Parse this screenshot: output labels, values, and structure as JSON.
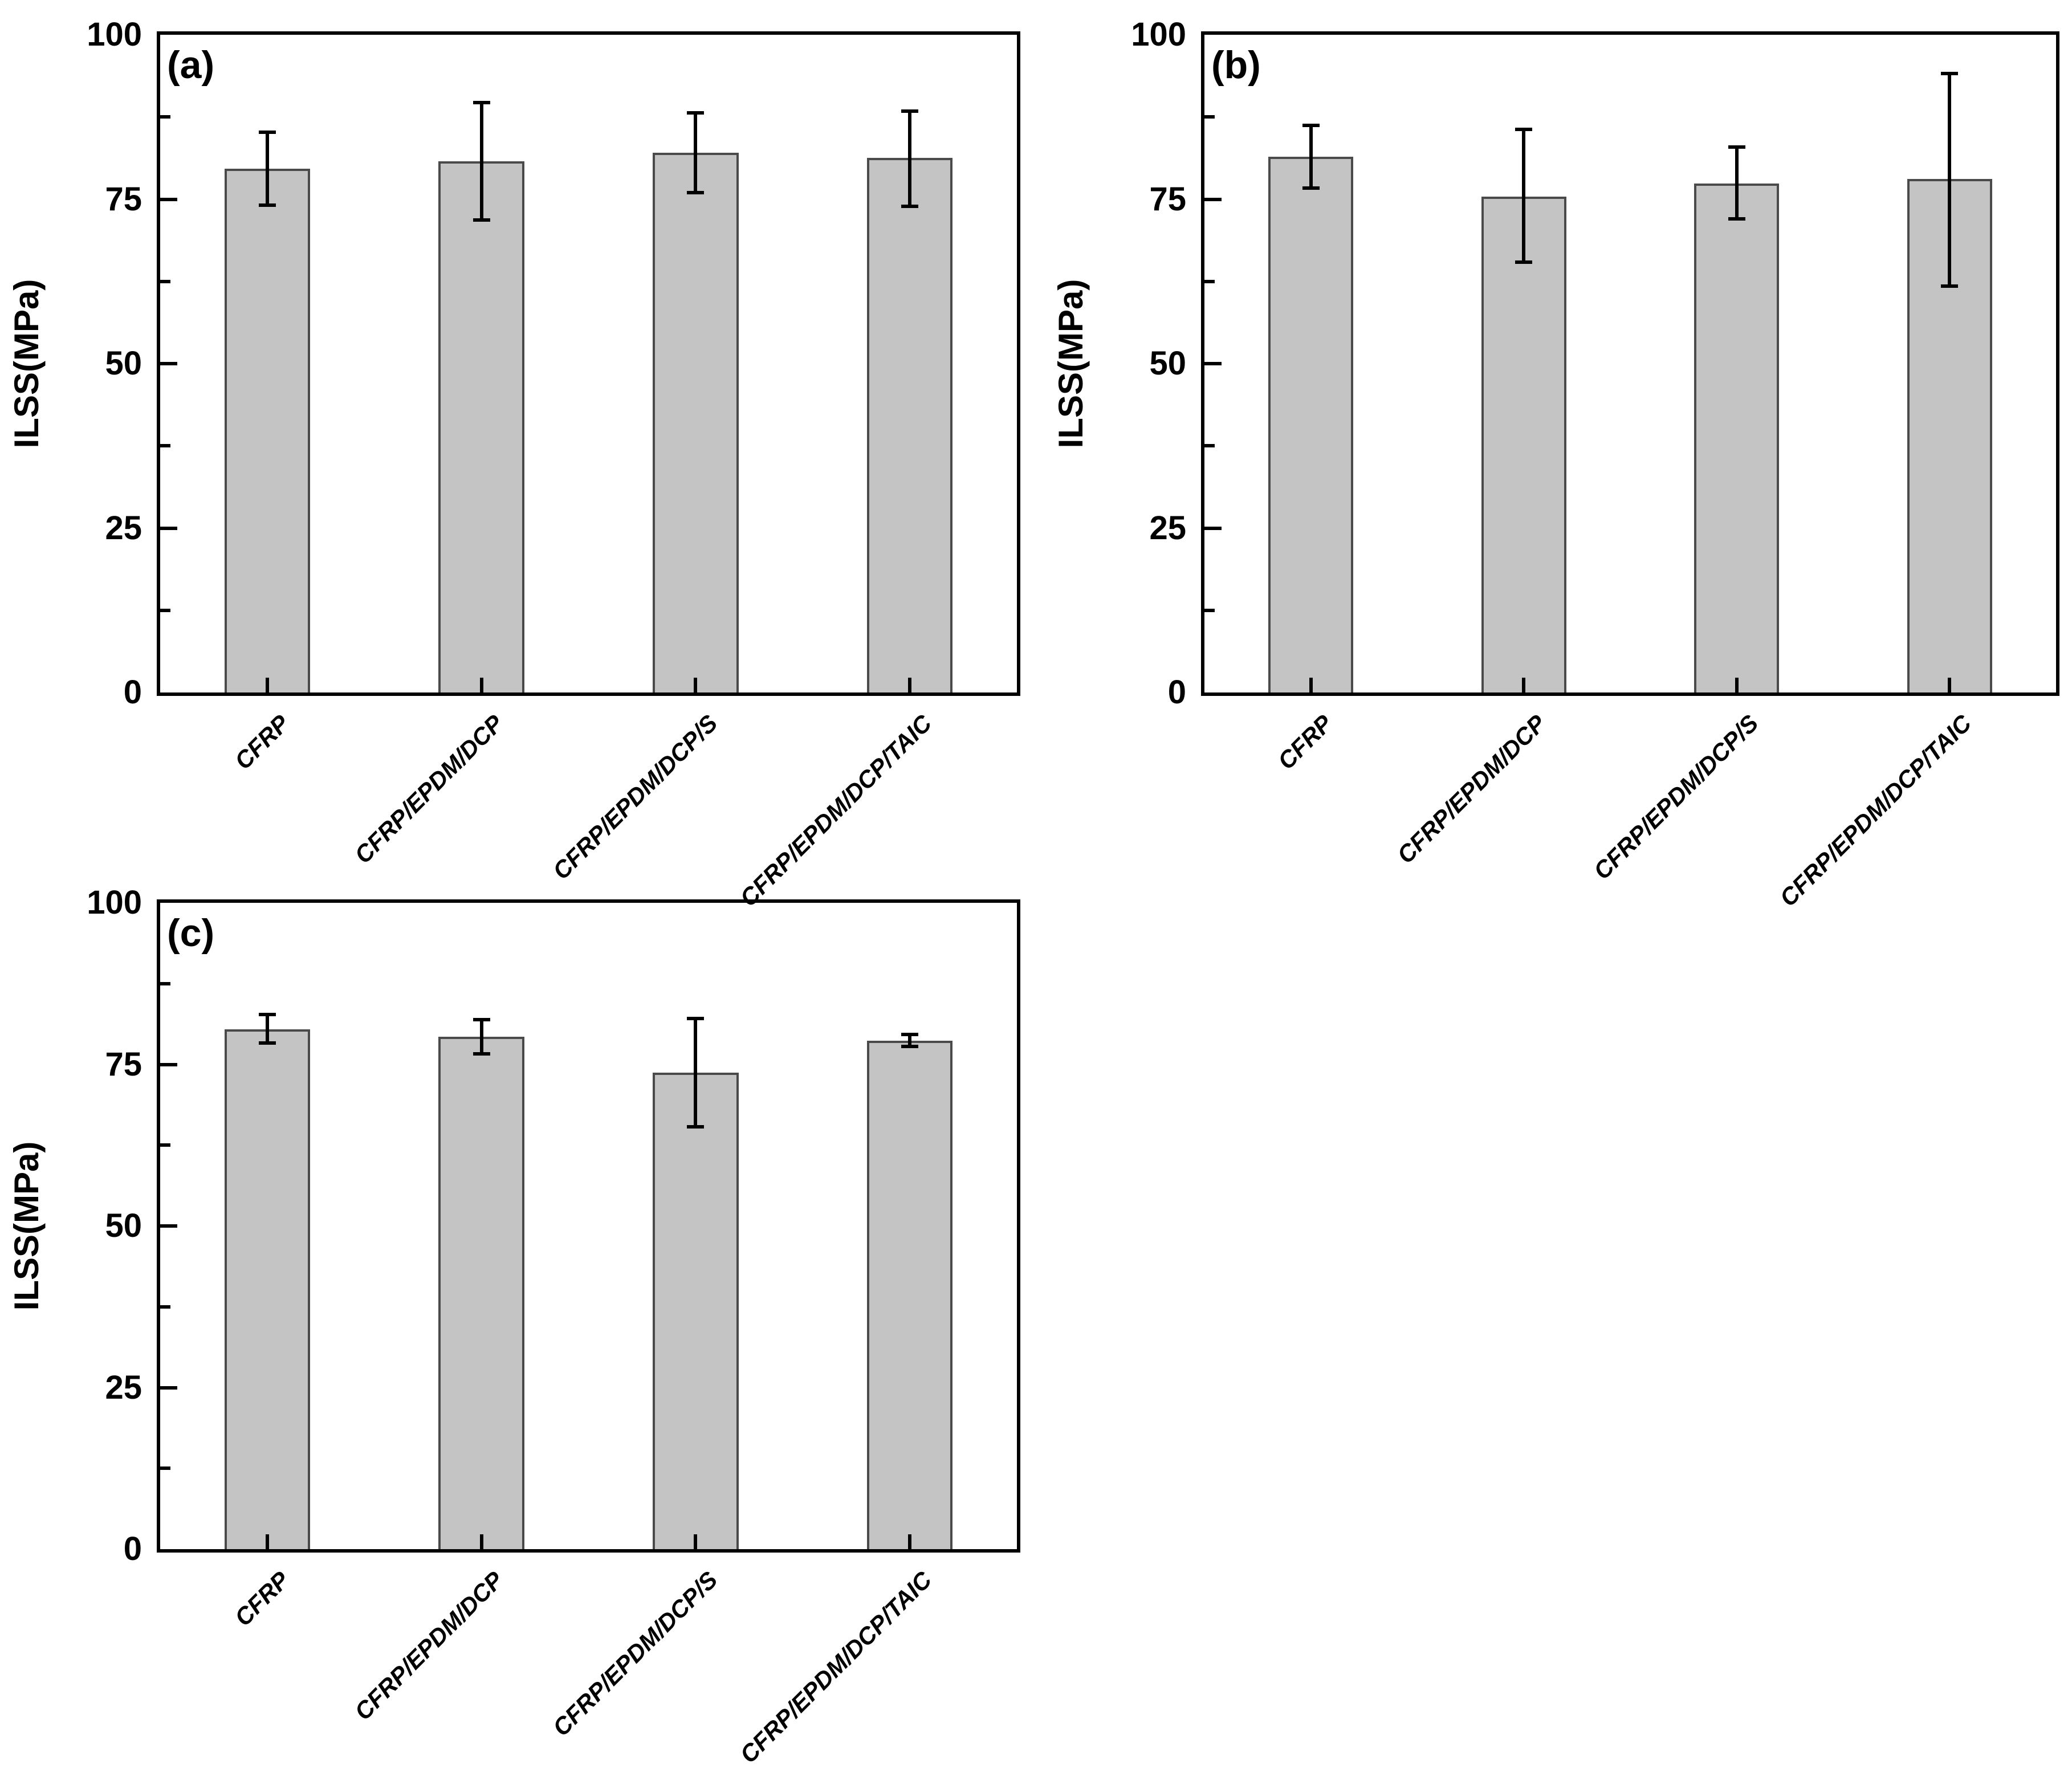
{
  "figure": {
    "background": "#ffffff",
    "bar_fill": "#c4c4c4",
    "bar_border": "#4a4a4a",
    "error_color": "#000000",
    "axis_color": "#000000"
  },
  "chart_data": [
    {
      "type": "bar",
      "panel": "(a)",
      "ylabel": "ILSS(MPa)",
      "xlabel": "",
      "ylim": [
        0,
        100
      ],
      "yticks": [
        0,
        25,
        50,
        75,
        100
      ],
      "minor_yticks": [
        12.5,
        37.5,
        62.5,
        87.5
      ],
      "grid": false,
      "legend": "none",
      "categories": [
        "CFRP",
        "CFRP/EPDM/DCP",
        "CFRP/EPDM/DCP/S",
        "CFRP/EPDM/DCP/TAIC"
      ],
      "values": [
        79.6,
        80.8,
        82.1,
        81.3
      ],
      "error_up": [
        5.6,
        8.9,
        6.0,
        7.1
      ],
      "error_down": [
        5.5,
        9.0,
        6.1,
        7.4
      ]
    },
    {
      "type": "bar",
      "panel": "(b)",
      "ylabel": "ILSS(MPa)",
      "xlabel": "",
      "ylim": [
        0,
        100
      ],
      "yticks": [
        0,
        25,
        50,
        75,
        100
      ],
      "minor_yticks": [
        12.5,
        37.5,
        62.5,
        87.5
      ],
      "grid": false,
      "legend": "none",
      "categories": [
        "CFRP",
        "CFRP/EPDM/DCP",
        "CFRP/EPDM/DCP/S",
        "CFRP/EPDM/DCP/TAIC"
      ],
      "values": [
        81.5,
        75.4,
        77.4,
        78.1
      ],
      "error_up": [
        4.7,
        10.2,
        5.5,
        16.0
      ],
      "error_down": [
        4.8,
        10.0,
        5.4,
        16.3
      ]
    },
    {
      "type": "bar",
      "panel": "(c)",
      "ylabel": "ILSS(MPa)",
      "xlabel": "",
      "ylim": [
        0,
        100
      ],
      "yticks": [
        0,
        25,
        50,
        75,
        100
      ],
      "minor_yticks": [
        12.5,
        37.5,
        62.5,
        87.5
      ],
      "grid": false,
      "legend": "none",
      "categories": [
        "CFRP",
        "CFRP/EPDM/DCP",
        "CFRP/EPDM/DCP/S",
        "CFRP/EPDM/DCP/TAIC"
      ],
      "values": [
        80.4,
        79.3,
        73.7,
        78.7
      ],
      "error_up": [
        2.3,
        2.6,
        8.4,
        0.9
      ],
      "error_down": [
        2.1,
        2.7,
        8.4,
        0.9
      ]
    }
  ]
}
